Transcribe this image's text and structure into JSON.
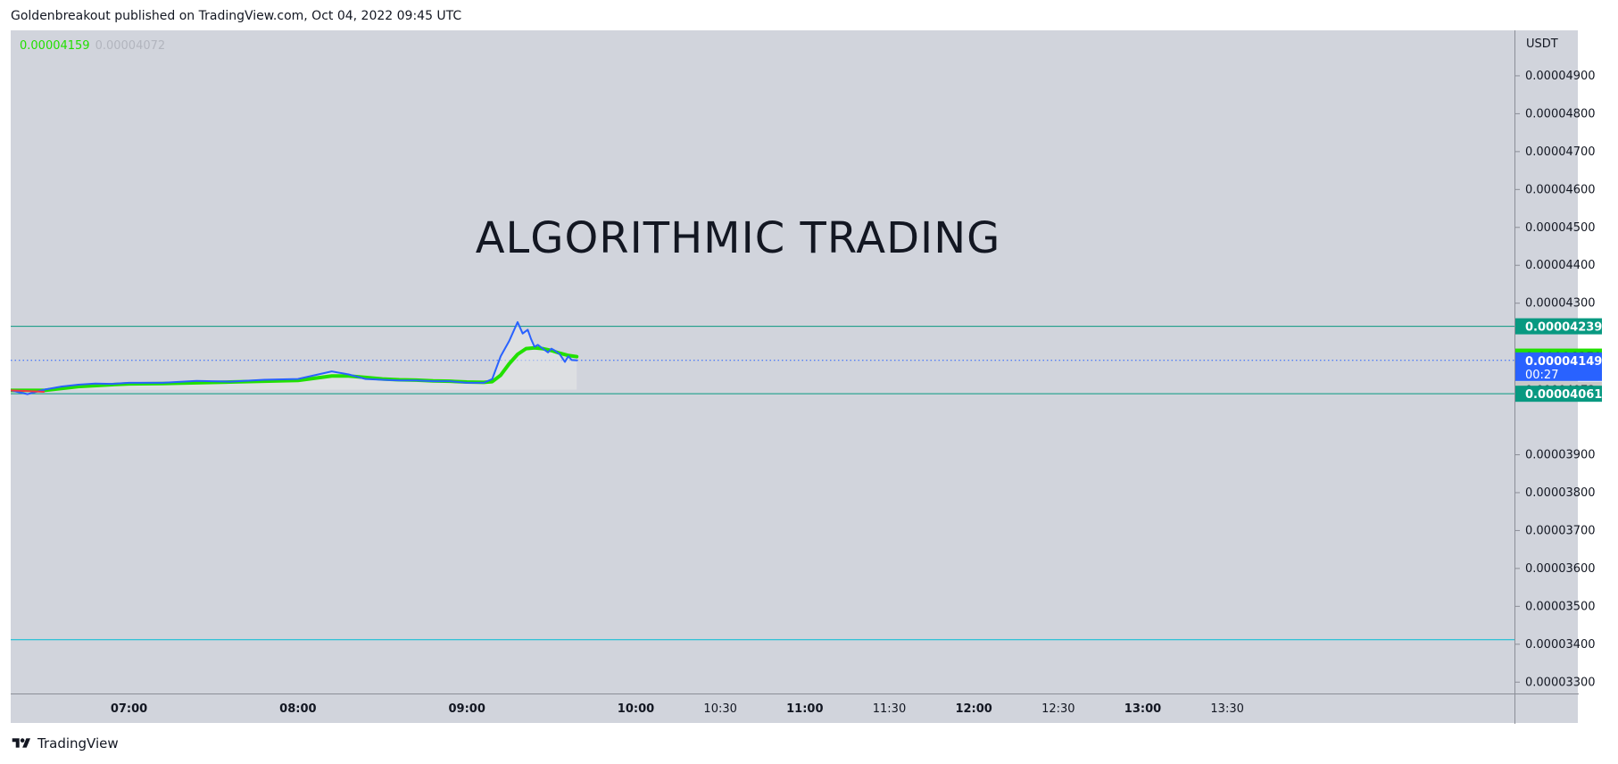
{
  "header": {
    "publish_line": "Goldenbreakout published on TradingView.com, Oct 04, 2022 09:45 UTC"
  },
  "legend": {
    "value1": "0.00004159",
    "value2": "0.00004072"
  },
  "watermark": "ALGORITHMIC TRADING",
  "footer": {
    "brand": "TradingView",
    "logo_icon": "tradingview-logo-icon"
  },
  "chart_data": {
    "type": "line",
    "price_unit": "USDT",
    "y_ticks": [
      "0.00004900",
      "0.00004800",
      "0.00004700",
      "0.00004600",
      "0.00004500",
      "0.00004400",
      "0.00004300",
      "0.00003900",
      "0.00003800",
      "0.00003700",
      "0.00003600",
      "0.00003500",
      "0.00003400",
      "0.00003300"
    ],
    "ylim": [
      3.27e-05,
      5.02e-05
    ],
    "x_ticks": [
      {
        "label": "07:00",
        "bold": true
      },
      {
        "label": "08:00",
        "bold": true
      },
      {
        "label": "09:00",
        "bold": true
      },
      {
        "label": "10:00",
        "bold": true
      },
      {
        "label": "10:30",
        "bold": false
      },
      {
        "label": "11:00",
        "bold": true
      },
      {
        "label": "11:30",
        "bold": false
      },
      {
        "label": "12:00",
        "bold": true
      },
      {
        "label": "12:30",
        "bold": false
      },
      {
        "label": "13:00",
        "bold": true
      },
      {
        "label": "13:30",
        "bold": false
      }
    ],
    "x_tick_hours": [
      7,
      8,
      9,
      10,
      10.5,
      11,
      11.5,
      12,
      12.5,
      13,
      13.5
    ],
    "price_labels": [
      {
        "text": "0.00004239",
        "value": 4.239e-05,
        "bg": "#089981",
        "fg": "#ffffff"
      },
      {
        "text": "0.00004159",
        "value": 4.159e-05,
        "bg": "#22e000",
        "fg": "#131722"
      },
      {
        "text": "0.00004149",
        "value": 4.149e-05,
        "sub": "00:27",
        "bg": "#2962ff",
        "fg": "#ffffff"
      },
      {
        "text": "0.00004072",
        "value": 4.072e-05,
        "bg": "#c8c8c8",
        "fg": "#131722"
      },
      {
        "text": "0.00004061",
        "value": 4.061e-05,
        "bg": "#089981",
        "fg": "#ffffff"
      }
    ],
    "horizontal_lines": [
      {
        "value": 4.239e-05,
        "color": "#089981",
        "style": "solid"
      },
      {
        "value": 4.061e-05,
        "color": "#089981",
        "style": "solid"
      },
      {
        "value": 3.412e-05,
        "color": "#00bcd4",
        "style": "solid"
      },
      {
        "value": 4.149e-05,
        "color": "#2962ff",
        "style": "dotted"
      }
    ],
    "area_baseline": 4.072e-05,
    "series": [
      {
        "name": "price",
        "color": "#2962ff",
        "x": [
          6.3,
          6.4,
          6.5,
          6.6,
          6.7,
          6.8,
          6.9,
          7.0,
          7.2,
          7.4,
          7.6,
          7.8,
          8.0,
          8.1,
          8.2,
          8.3,
          8.4,
          8.5,
          8.6,
          8.7,
          8.8,
          8.9,
          9.0,
          9.1,
          9.15,
          9.2,
          9.25,
          9.3,
          9.33,
          9.36,
          9.38,
          9.4,
          9.42,
          9.45,
          9.48,
          9.5,
          9.52,
          9.55,
          9.58,
          9.6,
          9.62,
          9.65
        ],
        "y": [
          4.07e-05,
          4.06e-05,
          4.072e-05,
          4.08e-05,
          4.085e-05,
          4.088e-05,
          4.087e-05,
          4.09e-05,
          4.09e-05,
          4.095e-05,
          4.093e-05,
          4.098e-05,
          4.1e-05,
          4.11e-05,
          4.12e-05,
          4.112e-05,
          4.1e-05,
          4.098e-05,
          4.096e-05,
          4.096e-05,
          4.094e-05,
          4.094e-05,
          4.09e-05,
          4.09e-05,
          4.1e-05,
          4.16e-05,
          4.2e-05,
          4.25e-05,
          4.22e-05,
          4.23e-05,
          4.205e-05,
          4.185e-05,
          4.19e-05,
          4.18e-05,
          4.17e-05,
          4.18e-05,
          4.175e-05,
          4.165e-05,
          4.145e-05,
          4.16e-05,
          4.15e-05,
          4.149e-05
        ]
      },
      {
        "name": "average",
        "color": "#22e000",
        "x": [
          6.3,
          6.5,
          6.7,
          6.9,
          7.0,
          7.2,
          7.4,
          7.6,
          7.8,
          8.0,
          8.1,
          8.2,
          8.3,
          8.4,
          8.5,
          8.6,
          8.7,
          8.8,
          8.9,
          9.0,
          9.1,
          9.15,
          9.2,
          9.25,
          9.3,
          9.35,
          9.4,
          9.45,
          9.5,
          9.55,
          9.6,
          9.65
        ],
        "y": [
          4.07e-05,
          4.07e-05,
          4.08e-05,
          4.085e-05,
          4.087e-05,
          4.088e-05,
          4.09e-05,
          4.092e-05,
          4.094e-05,
          4.096e-05,
          4.102e-05,
          4.108e-05,
          4.108e-05,
          4.104e-05,
          4.1e-05,
          4.098e-05,
          4.097e-05,
          4.095e-05,
          4.094e-05,
          4.092e-05,
          4.091e-05,
          4.093e-05,
          4.11e-05,
          4.14e-05,
          4.165e-05,
          4.18e-05,
          4.182e-05,
          4.18e-05,
          4.175e-05,
          4.168e-05,
          4.162e-05,
          4.159e-05
        ]
      }
    ],
    "xlim": [
      6.3,
      15.2
    ]
  }
}
